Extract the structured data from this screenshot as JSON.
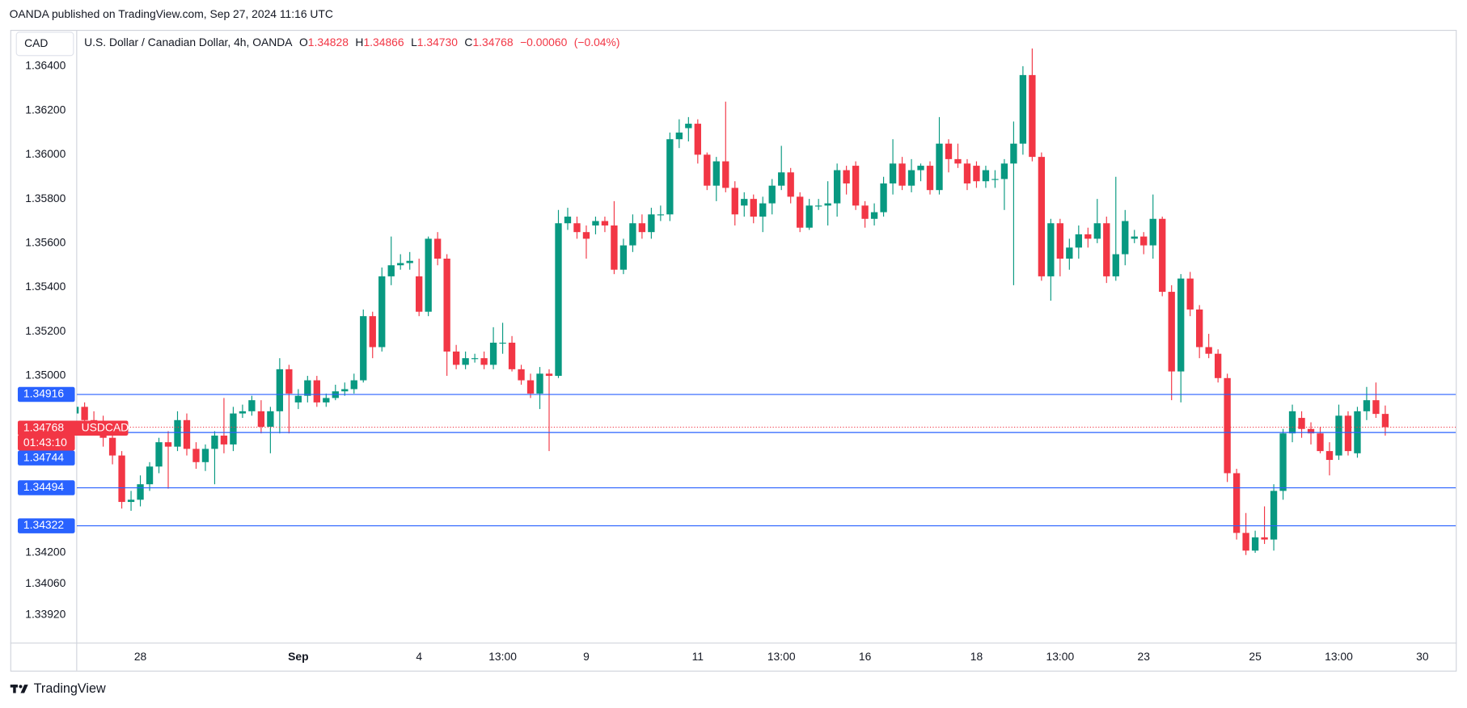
{
  "chart_data": {
    "type": "candlestick",
    "publisher": "OANDA published on TradingView.com, Sep 27, 2024 11:16 UTC",
    "currency": "CAD",
    "title": "U.S. Dollar / Canadian Dollar, 4h, OANDA",
    "ohlc_labels": [
      "O",
      "H",
      "L",
      "C"
    ],
    "ohlc_values": [
      "1.34828",
      "1.34866",
      "1.34730",
      "1.34768"
    ],
    "change": "−0.00060",
    "change_pct": "(−0.04%)",
    "symbol": "USDCAD",
    "countdown": "01:43:10",
    "footer": "TradingView",
    "up_color": "#089981",
    "down_color": "#f23645",
    "price_line_color": "#2962ff",
    "price_lines": [
      1.34916,
      1.34744,
      1.34494,
      1.34322
    ],
    "ylim": [
      1.33794,
      1.3656
    ],
    "yticks": [
      {
        "value": 1.364,
        "label": "1.36400"
      },
      {
        "value": 1.362,
        "label": "1.36200"
      },
      {
        "value": 1.36,
        "label": "1.36000"
      },
      {
        "value": 1.358,
        "label": "1.35800"
      },
      {
        "value": 1.356,
        "label": "1.35600"
      },
      {
        "value": 1.354,
        "label": "1.35400"
      },
      {
        "value": 1.352,
        "label": "1.35200"
      },
      {
        "value": 1.35,
        "label": "1.35000"
      },
      {
        "value": 1.342,
        "label": "1.34200"
      },
      {
        "value": 1.3406,
        "label": "1.34060"
      },
      {
        "value": 1.3392,
        "label": "1.33920"
      }
    ],
    "categories": [
      null,
      null,
      null,
      null,
      null,
      null,
      null,
      "28",
      null,
      null,
      null,
      null,
      null,
      null,
      null,
      null,
      null,
      null,
      null,
      null,
      null,
      null,
      null,
      null,
      "Sep",
      null,
      null,
      null,
      null,
      null,
      null,
      null,
      null,
      null,
      null,
      null,
      null,
      "4",
      null,
      null,
      null,
      null,
      null,
      null,
      null,
      null,
      "13:00",
      null,
      null,
      null,
      null,
      null,
      null,
      null,
      null,
      "9",
      null,
      null,
      null,
      null,
      null,
      null,
      null,
      null,
      null,
      null,
      null,
      "11",
      null,
      null,
      null,
      null,
      null,
      null,
      null,
      null,
      "13:00",
      null,
      null,
      null,
      null,
      null,
      null,
      null,
      null,
      "16",
      null,
      null,
      null,
      null,
      null,
      null,
      null,
      null,
      null,
      null,
      null,
      "18",
      null,
      null,
      null,
      null,
      null,
      null,
      null,
      null,
      "13:00",
      null,
      null,
      null,
      null,
      null,
      null,
      null,
      null,
      "23",
      null,
      null,
      null,
      null,
      null,
      null,
      null,
      null,
      null,
      null,
      null,
      "25",
      null,
      null,
      null,
      null,
      null,
      null,
      null,
      null,
      "13:00",
      null,
      null,
      null,
      null,
      null,
      null,
      null,
      null,
      "30"
    ],
    "open": [
      1.3483,
      1.3486,
      1.348,
      1.3478,
      1.3472,
      1.3464,
      1.3443,
      1.3444,
      1.3451,
      1.3459,
      1.347,
      1.3468,
      1.348,
      1.3467,
      1.3461,
      1.3467,
      1.3473,
      1.3469,
      1.3483,
      1.3484,
      1.3484,
      1.3477,
      1.3484,
      1.3503,
      1.3488,
      1.3491,
      1.3498,
      1.3488,
      1.349,
      1.3493,
      1.3494,
      1.3498,
      1.3527,
      1.3513,
      1.3545,
      1.355,
      1.3551,
      1.3545,
      1.3529,
      1.3562,
      1.3553,
      1.3511,
      1.3505,
      1.3508,
      1.3508,
      1.3505,
      1.3515,
      1.3515,
      1.3503,
      1.3498,
      1.3492,
      1.3501,
      1.35,
      1.3569,
      1.3569,
      1.3565,
      1.3568,
      1.357,
      1.3568,
      1.3548,
      1.3559,
      1.3569,
      1.3565,
      1.3573,
      1.3573,
      1.3607,
      1.3612,
      1.3614,
      1.36,
      1.3586,
      1.3597,
      1.3585,
      1.3577,
      1.358,
      1.3572,
      1.3578,
      1.3586,
      1.3592,
      1.3581,
      1.3567,
      1.3577,
      1.3577,
      1.3578,
      1.3593,
      1.3595,
      1.3577,
      1.3571,
      1.3574,
      1.3587,
      1.3596,
      1.3586,
      1.3593,
      1.3595,
      1.3584,
      1.3605,
      1.3598,
      1.3596,
      1.3595,
      1.3588,
      1.3589,
      1.3589,
      1.3596,
      1.3605,
      1.3636,
      1.3599,
      1.3545,
      1.3569,
      1.3553,
      1.3558,
      1.3564,
      1.3562,
      1.3569,
      1.3545,
      1.3555,
      1.3562,
      1.3563,
      1.3559,
      1.3571,
      1.3538,
      1.3502,
      1.3544,
      1.353,
      1.3513,
      1.351,
      1.3499,
      1.3456,
      1.3429,
      1.3421,
      1.3427,
      1.3426,
      1.3448,
      1.3474,
      1.3481,
      1.3476,
      1.3474,
      1.3466,
      1.3464,
      1.3482,
      1.3465,
      1.3484,
      1.3489,
      1.34828,
      null,
      null,
      null,
      null
    ],
    "high": [
      1.3486,
      1.3488,
      1.3484,
      1.3482,
      1.3476,
      1.3466,
      1.3448,
      1.3455,
      1.3461,
      1.3472,
      1.3475,
      1.3484,
      1.3483,
      1.347,
      1.3469,
      1.3475,
      1.349,
      1.3486,
      1.3487,
      1.3491,
      1.3489,
      1.3486,
      1.3508,
      1.3505,
      1.3494,
      1.35,
      1.35,
      1.3492,
      1.3496,
      1.3497,
      1.3501,
      1.353,
      1.3529,
      1.3549,
      1.3563,
      1.3555,
      1.3556,
      1.3553,
      1.3563,
      1.3565,
      1.3555,
      1.3514,
      1.3511,
      1.351,
      1.3511,
      1.3522,
      1.3524,
      1.3518,
      1.3505,
      1.3501,
      1.3504,
      1.3503,
      1.3575,
      1.3576,
      1.3572,
      1.3568,
      1.3572,
      1.3572,
      1.3579,
      1.3562,
      1.3573,
      1.3573,
      1.3576,
      1.3577,
      1.361,
      1.3616,
      1.3617,
      1.3616,
      1.3601,
      1.3599,
      1.3624,
      1.3588,
      1.3583,
      1.3582,
      1.3581,
      1.3589,
      1.3604,
      1.3594,
      1.3583,
      1.358,
      1.358,
      1.3588,
      1.3596,
      1.3595,
      1.3597,
      1.3579,
      1.3578,
      1.359,
      1.3607,
      1.3599,
      1.3598,
      1.3596,
      1.3597,
      1.3617,
      1.3607,
      1.3605,
      1.3598,
      1.3597,
      1.3595,
      1.3593,
      1.3598,
      1.3615,
      1.364,
      1.3648,
      1.3601,
      1.3571,
      1.3571,
      1.3562,
      1.3568,
      1.3567,
      1.358,
      1.3572,
      1.359,
      1.3575,
      1.3566,
      1.3565,
      1.3582,
      1.3572,
      1.3541,
      1.3546,
      1.3547,
      1.3532,
      1.3519,
      1.3512,
      1.3501,
      1.3458,
      1.3438,
      1.343,
      1.3441,
      1.3451,
      1.3476,
      1.3487,
      1.3484,
      1.3479,
      1.3477,
      1.347,
      1.3487,
      1.3484,
      1.3486,
      1.3495,
      1.3497,
      1.34866,
      null,
      null,
      null,
      null
    ],
    "low": [
      1.348,
      1.3476,
      1.3474,
      1.3468,
      1.346,
      1.344,
      1.3439,
      1.3441,
      1.3448,
      1.3456,
      1.3449,
      1.3466,
      1.3464,
      1.3458,
      1.3457,
      1.3451,
      1.3465,
      1.3466,
      1.3481,
      1.3482,
      1.3474,
      1.3465,
      1.3474,
      1.3474,
      1.3485,
      1.3488,
      1.3486,
      1.3486,
      1.3489,
      1.3491,
      1.3492,
      1.3497,
      1.3508,
      1.3511,
      1.3541,
      1.3548,
      1.3548,
      1.3527,
      1.3527,
      1.355,
      1.35,
      1.3503,
      1.3503,
      1.3506,
      1.3503,
      1.3503,
      1.351,
      1.3502,
      1.3496,
      1.349,
      1.3485,
      1.3466,
      1.3499,
      1.3566,
      1.3562,
      1.3553,
      1.3564,
      1.3565,
      1.3546,
      1.3546,
      1.3556,
      1.3562,
      1.3562,
      1.357,
      1.357,
      1.3603,
      1.3606,
      1.3596,
      1.3584,
      1.3579,
      1.3583,
      1.3568,
      1.3572,
      1.3569,
      1.3565,
      1.3573,
      1.3584,
      1.3578,
      1.3565,
      1.3566,
      1.3575,
      1.3568,
      1.3572,
      1.3582,
      1.3575,
      1.3567,
      1.3568,
      1.3572,
      1.3582,
      1.3584,
      1.3583,
      1.3588,
      1.3582,
      1.3582,
      1.3592,
      1.3594,
      1.3584,
      1.3585,
      1.3585,
      1.3585,
      1.3575,
      1.3541,
      1.36,
      1.3597,
      1.3543,
      1.3534,
      1.3545,
      1.3548,
      1.3553,
      1.3558,
      1.356,
      1.3542,
      1.3543,
      1.355,
      1.356,
      1.3555,
      1.3553,
      1.3536,
      1.3489,
      1.3488,
      1.3527,
      1.3508,
      1.3508,
      1.3497,
      1.3452,
      1.3426,
      1.3419,
      1.342,
      1.3424,
      1.3421,
      1.3444,
      1.347,
      1.3472,
      1.3469,
      1.3465,
      1.3455,
      1.3462,
      1.3464,
      1.3463,
      1.348,
      1.3481,
      1.3473,
      null,
      null,
      null,
      null
    ],
    "close": [
      1.3486,
      1.348,
      1.3478,
      1.3472,
      1.3464,
      1.3443,
      1.3444,
      1.3451,
      1.3459,
      1.347,
      1.3468,
      1.348,
      1.3467,
      1.3461,
      1.3467,
      1.3473,
      1.3469,
      1.3483,
      1.3484,
      1.3489,
      1.3477,
      1.3484,
      1.3503,
      1.3492,
      1.3491,
      1.3498,
      1.3488,
      1.349,
      1.3493,
      1.3494,
      1.3498,
      1.3527,
      1.3513,
      1.3545,
      1.355,
      1.3551,
      1.3552,
      1.3529,
      1.3562,
      1.3553,
      1.3511,
      1.3505,
      1.3508,
      1.3508,
      1.3505,
      1.3515,
      1.3515,
      1.3503,
      1.3498,
      1.3492,
      1.3501,
      1.35,
      1.3569,
      1.3572,
      1.3565,
      1.3562,
      1.357,
      1.3568,
      1.3548,
      1.3559,
      1.3569,
      1.3565,
      1.3573,
      1.3573,
      1.3607,
      1.361,
      1.3614,
      1.36,
      1.3586,
      1.3597,
      1.3585,
      1.3573,
      1.358,
      1.3572,
      1.3578,
      1.3586,
      1.3592,
      1.3581,
      1.3567,
      1.3577,
      1.3577,
      1.3578,
      1.3593,
      1.3587,
      1.3577,
      1.3571,
      1.3574,
      1.3587,
      1.3596,
      1.3586,
      1.3593,
      1.3595,
      1.3584,
      1.3605,
      1.3598,
      1.3596,
      1.3587,
      1.3588,
      1.3593,
      1.3589,
      1.3596,
      1.3605,
      1.3636,
      1.3599,
      1.3545,
      1.3569,
      1.3553,
      1.3558,
      1.3564,
      1.3562,
      1.3569,
      1.3545,
      1.3555,
      1.357,
      1.3563,
      1.3559,
      1.3571,
      1.3538,
      1.3502,
      1.3544,
      1.353,
      1.3513,
      1.351,
      1.3499,
      1.3456,
      1.3429,
      1.3421,
      1.3427,
      1.3426,
      1.3448,
      1.3474,
      1.3484,
      1.3476,
      1.3474,
      1.3466,
      1.3462,
      1.3482,
      1.3466,
      1.3484,
      1.3489,
      1.34828,
      1.34768,
      null,
      null,
      null,
      null
    ]
  }
}
